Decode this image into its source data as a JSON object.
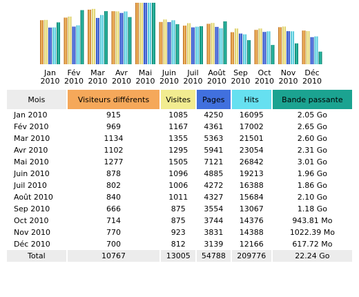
{
  "chart_data": {
    "type": "bar",
    "categories": [
      [
        "Jan",
        "2010"
      ],
      [
        "Fév",
        "2010"
      ],
      [
        "Mar",
        "2010"
      ],
      [
        "Avr",
        "2010"
      ],
      [
        "Mai",
        "2010"
      ],
      [
        "Juin",
        "2010"
      ],
      [
        "Juil",
        "2010"
      ],
      [
        "Août",
        "2010"
      ],
      [
        "Sep",
        "2010"
      ],
      [
        "Oct",
        "2010"
      ],
      [
        "Nov",
        "2010"
      ],
      [
        "Déc",
        "2010"
      ]
    ],
    "series": [
      {
        "name": "Visiteurs différents",
        "color": "#e79a3c",
        "values": [
          915,
          969,
          1134,
          1102,
          1277,
          878,
          802,
          840,
          666,
          714,
          770,
          700
        ]
      },
      {
        "name": "Visites",
        "color": "#ece07f",
        "values": [
          1085,
          1167,
          1355,
          1295,
          1505,
          1096,
          1006,
          1011,
          875,
          875,
          923,
          812
        ]
      },
      {
        "name": "Pages",
        "color": "#3b5fcf",
        "values": [
          4250,
          4361,
          5363,
          5941,
          7121,
          4885,
          4272,
          4327,
          3554,
          3744,
          3831,
          3139
        ]
      },
      {
        "name": "Hits",
        "color": "#5ed7e8",
        "values": [
          16095,
          17002,
          21501,
          23054,
          26842,
          19213,
          16388,
          15684,
          13067,
          14376,
          14388,
          12166
        ]
      },
      {
        "name": "Bande passante",
        "color": "#13a08a",
        "unit": "Go",
        "values": [
          2.05,
          2.65,
          2.6,
          2.31,
          3.01,
          1.96,
          1.86,
          2.1,
          1.18,
          0.94381,
          1.02239,
          0.61772
        ]
      }
    ]
  },
  "table": {
    "headers": [
      {
        "label": "Mois",
        "bg": "#ececec"
      },
      {
        "label": "Visiteurs différents",
        "bg": "#f5a85a"
      },
      {
        "label": "Visites",
        "bg": "#f2ec90"
      },
      {
        "label": "Pages",
        "bg": "#4170de"
      },
      {
        "label": "Hits",
        "bg": "#66e0f0"
      },
      {
        "label": "Bande passante",
        "bg": "#1ba391"
      }
    ],
    "rows": [
      [
        "Jan 2010",
        "915",
        "1085",
        "4250",
        "16095",
        "2.05 Go"
      ],
      [
        "Fév 2010",
        "969",
        "1167",
        "4361",
        "17002",
        "2.65 Go"
      ],
      [
        "Mar 2010",
        "1134",
        "1355",
        "5363",
        "21501",
        "2.60 Go"
      ],
      [
        "Avr 2010",
        "1102",
        "1295",
        "5941",
        "23054",
        "2.31 Go"
      ],
      [
        "Mai 2010",
        "1277",
        "1505",
        "7121",
        "26842",
        "3.01 Go"
      ],
      [
        "Juin 2010",
        "878",
        "1096",
        "4885",
        "19213",
        "1.96 Go"
      ],
      [
        "Juil 2010",
        "802",
        "1006",
        "4272",
        "16388",
        "1.86 Go"
      ],
      [
        "Août 2010",
        "840",
        "1011",
        "4327",
        "15684",
        "2.10 Go"
      ],
      [
        "Sep 2010",
        "666",
        "875",
        "3554",
        "13067",
        "1.18 Go"
      ],
      [
        "Oct 2010",
        "714",
        "875",
        "3744",
        "14376",
        "943.81 Mo"
      ],
      [
        "Nov 2010",
        "770",
        "923",
        "3831",
        "14388",
        "1022.39 Mo"
      ],
      [
        "Déc 2010",
        "700",
        "812",
        "3139",
        "12166",
        "617.72 Mo"
      ]
    ],
    "total": [
      "Total",
      "10767",
      "13005",
      "54788",
      "209776",
      "22.24 Go"
    ]
  }
}
